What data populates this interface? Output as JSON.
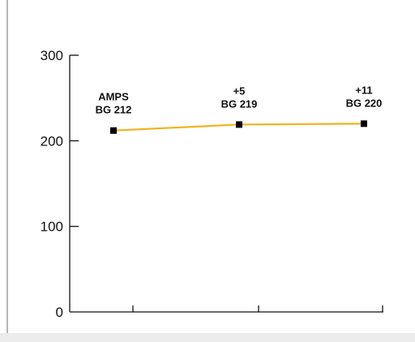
{
  "chart_data": {
    "type": "line",
    "title": "",
    "xlabel": "",
    "ylabel": "",
    "ylim": [
      0,
      300
    ],
    "yticks": [
      0,
      100,
      200,
      300
    ],
    "x": [
      1,
      2,
      3
    ],
    "grid": false,
    "series": [
      {
        "color": "#f2b320",
        "marker_color": "#000000",
        "values": [
          212,
          219,
          220
        ],
        "point_labels": [
          [
            "AMPS",
            "BG 212"
          ],
          [
            "+5",
            "BG 219"
          ],
          [
            "+11",
            "BG 220"
          ]
        ]
      }
    ]
  }
}
